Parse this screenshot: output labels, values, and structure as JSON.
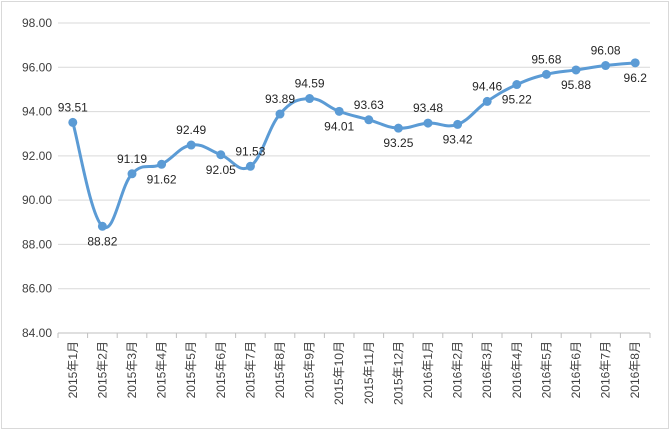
{
  "chart_data": {
    "type": "line",
    "title": "",
    "xlabel": "",
    "ylabel": "",
    "ylim": [
      84,
      98
    ],
    "ytick_step": 2,
    "ytick_labels": [
      "84.00",
      "86.00",
      "88.00",
      "90.00",
      "92.00",
      "94.00",
      "96.00",
      "98.00"
    ],
    "grid": true,
    "legend": "none",
    "smooth": true,
    "line_color": "#5b9bd5",
    "categories": [
      "2015年1月",
      "2015年2月",
      "2015年3月",
      "2015年4月",
      "2015年5月",
      "2015年6月",
      "2015年7月",
      "2015年8月",
      "2015年9月",
      "2015年10月",
      "2015年11月",
      "2015年12月",
      "2016年1月",
      "2016年2月",
      "2016年3月",
      "2016年4月",
      "2016年5月",
      "2016年6月",
      "2016年7月",
      "2016年8月"
    ],
    "series": [
      {
        "values": [
          93.51,
          88.82,
          91.19,
          91.62,
          92.49,
          92.05,
          91.53,
          93.89,
          94.59,
          94.01,
          93.63,
          93.25,
          93.48,
          93.42,
          94.46,
          95.22,
          95.68,
          95.88,
          96.08,
          96.2
        ],
        "data_labels": [
          "93.51",
          "88.82",
          "91.19",
          "91.62",
          "92.49",
          "92.05",
          "91.53",
          "93.89",
          "94.59",
          "94.01",
          "93.63",
          "93.25",
          "93.48",
          "93.42",
          "94.46",
          "95.22",
          "95.68",
          "95.88",
          "96.08",
          "96.2"
        ]
      }
    ]
  }
}
